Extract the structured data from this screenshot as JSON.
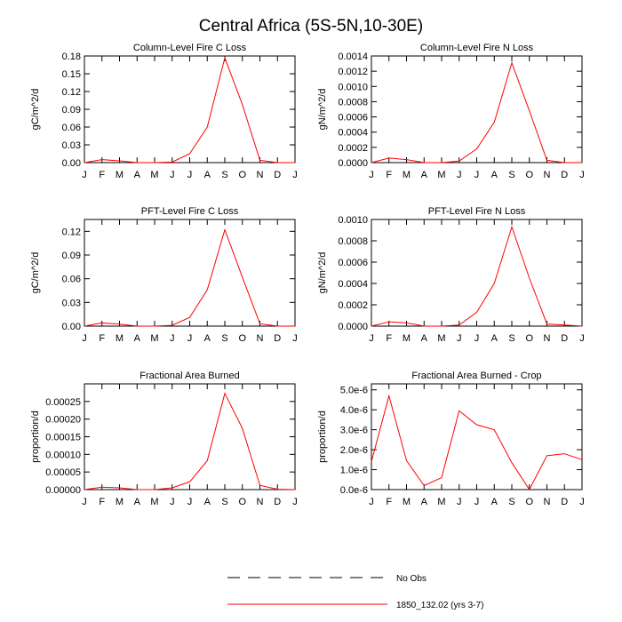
{
  "figure": {
    "title": "Central Africa (5S-5N,10-30E)"
  },
  "legend": {
    "entries": [
      {
        "label": "No Obs",
        "style": "dashed",
        "color": "#000000"
      },
      {
        "label": "1850_132.02 (yrs 3-7)",
        "style": "solid",
        "color": "#ff0000"
      }
    ]
  },
  "chart_data": [
    {
      "type": "line",
      "title": "Column-Level Fire C Loss",
      "ylabel": "gC/m^2/d",
      "categories": [
        "J",
        "F",
        "M",
        "A",
        "M",
        "J",
        "J",
        "A",
        "S",
        "O",
        "N",
        "D",
        "J"
      ],
      "ylim": [
        0,
        0.18
      ],
      "yticks": [
        "0.00",
        "0.03",
        "0.06",
        "0.09",
        "0.12",
        "0.15",
        "0.18"
      ],
      "series": [
        {
          "values": [
            0.0,
            0.005,
            0.003,
            0.0,
            0.0,
            0.001,
            0.015,
            0.06,
            0.177,
            0.098,
            0.004,
            0.0,
            0.0
          ],
          "color": "#ff0000"
        }
      ]
    },
    {
      "type": "line",
      "title": "Column-Level Fire N Loss",
      "ylabel": "gN/m^2/d",
      "categories": [
        "J",
        "F",
        "M",
        "A",
        "M",
        "J",
        "J",
        "A",
        "S",
        "O",
        "N",
        "D",
        "J"
      ],
      "ylim": [
        0,
        0.0014
      ],
      "yticks": [
        "0.0000",
        "0.0002",
        "0.0004",
        "0.0006",
        "0.0008",
        "0.0010",
        "0.0012",
        "0.0014"
      ],
      "series": [
        {
          "values": [
            0.0,
            6e-05,
            4e-05,
            0.0,
            0.0,
            2e-05,
            0.00018,
            0.00053,
            0.00131,
            0.00068,
            3e-05,
            0.0,
            0.0
          ],
          "color": "#ff0000"
        }
      ]
    },
    {
      "type": "line",
      "title": "PFT-Level Fire C Loss",
      "ylabel": "gC/m^2/d",
      "categories": [
        "J",
        "F",
        "M",
        "A",
        "M",
        "J",
        "J",
        "A",
        "S",
        "O",
        "N",
        "D",
        "J"
      ],
      "ylim": [
        0,
        0.135
      ],
      "yticks": [
        "0.00",
        "0.03",
        "0.06",
        "0.09",
        "0.12"
      ],
      "series": [
        {
          "values": [
            0.0,
            0.004,
            0.0025,
            0.0,
            0.0,
            0.001,
            0.011,
            0.046,
            0.122,
            0.062,
            0.003,
            0.0,
            0.0
          ],
          "color": "#ff0000"
        }
      ]
    },
    {
      "type": "line",
      "title": "PFT-Level Fire N Loss",
      "ylabel": "gN/m^2/d",
      "categories": [
        "J",
        "F",
        "M",
        "A",
        "M",
        "J",
        "J",
        "A",
        "S",
        "O",
        "N",
        "D",
        "J"
      ],
      "ylim": [
        0,
        0.001
      ],
      "yticks": [
        "0.0000",
        "0.0002",
        "0.0004",
        "0.0006",
        "0.0008",
        "0.0010"
      ],
      "series": [
        {
          "values": [
            0.0,
            4e-05,
            3e-05,
            0.0,
            0.0,
            1e-05,
            0.00013,
            0.0004,
            0.00093,
            0.00045,
            2e-05,
            1e-05,
            0.0
          ],
          "color": "#ff0000"
        }
      ]
    },
    {
      "type": "line",
      "title": "Fractional Area Burned",
      "ylabel": "proportion/d",
      "categories": [
        "J",
        "F",
        "M",
        "A",
        "M",
        "J",
        "J",
        "A",
        "S",
        "O",
        "N",
        "D",
        "J"
      ],
      "ylim": [
        0,
        0.0003
      ],
      "yticks": [
        "0.00000",
        "0.00005",
        "0.00010",
        "0.00015",
        "0.00020",
        "0.00025"
      ],
      "series": [
        {
          "values": [
            0.0,
            7e-06,
            5e-06,
            0.0,
            0.0,
            5e-06,
            2.2e-05,
            8.2e-05,
            0.000273,
            0.000174,
            1.2e-05,
            1e-06,
            0.0
          ],
          "color": "#ff0000"
        }
      ]
    },
    {
      "type": "line",
      "title": "Fractional Area Burned - Crop",
      "ylabel": "proportion/d",
      "categories": [
        "J",
        "F",
        "M",
        "A",
        "M",
        "J",
        "J",
        "A",
        "S",
        "O",
        "N",
        "D",
        "J"
      ],
      "ylim": [
        0,
        5.3e-06
      ],
      "yticks": [
        "0.0e-6",
        "1.0e-6",
        "2.0e-6",
        "3.0e-6",
        "4.0e-6",
        "5.0e-6"
      ],
      "series": [
        {
          "values": [
            1.4e-06,
            4.7e-06,
            1.45e-06,
            2e-07,
            6e-07,
            3.95e-06,
            3.25e-06,
            3e-06,
            1.35e-06,
            0.0,
            1.7e-06,
            1.8e-06,
            1.5e-06
          ],
          "color": "#ff0000"
        }
      ]
    }
  ]
}
